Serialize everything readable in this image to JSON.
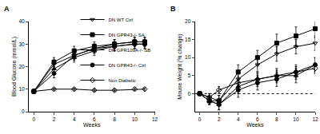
{
  "chart_data": [
    {
      "type": "line",
      "panel": "A",
      "x_label": "Weeks",
      "y_label": "Blood Glucose (mmol/L)",
      "xlim": [
        -0.5,
        12
      ],
      "xticks": [
        0,
        2,
        4,
        6,
        8,
        10,
        12
      ],
      "ylim": [
        0,
        40
      ],
      "yticks": [
        0,
        10,
        20,
        30,
        40
      ],
      "legend": "lower right",
      "series": [
        {
          "name": "DN WT Ctrl",
          "color": "#000000",
          "marker": "triangle-down-open",
          "x": [
            0,
            2,
            4,
            6,
            8,
            10,
            11
          ],
          "values": [
            9,
            21,
            25,
            28,
            30,
            31,
            31
          ],
          "errors": [
            1,
            2,
            2,
            2,
            2,
            2,
            2
          ]
        },
        {
          "name": "DN GPR43-/- SA",
          "color": "#000000",
          "marker": "square",
          "x": [
            0,
            2,
            4,
            6,
            8,
            10,
            11
          ],
          "values": [
            9,
            22,
            27,
            29,
            30,
            31,
            31
          ],
          "errors": [
            1,
            2,
            2,
            2,
            2,
            2,
            2
          ]
        },
        {
          "name": "DN GPR109A-/- SB",
          "color": "#000000",
          "marker": "triangle-up",
          "x": [
            0,
            2,
            4,
            6,
            8,
            10,
            11
          ],
          "values": [
            9,
            19,
            24,
            27,
            29,
            30,
            30
          ],
          "errors": [
            1,
            2,
            2,
            2,
            2,
            2,
            2
          ]
        },
        {
          "name": "DN GPR43-/- Ctrl",
          "color": "#000000",
          "marker": "circle",
          "x": [
            0,
            2,
            4,
            6,
            8,
            10,
            11
          ],
          "values": [
            9,
            17,
            25,
            28,
            29,
            30,
            30
          ],
          "errors": [
            1,
            2,
            2,
            2,
            2,
            2,
            2
          ]
        },
        {
          "name": "Non Diabetic",
          "color": "#000000",
          "marker": "diamond-open",
          "x": [
            0,
            2,
            4,
            6,
            8,
            10,
            11
          ],
          "values": [
            9,
            10,
            10,
            9.5,
            9.5,
            10,
            10
          ],
          "errors": [
            0.5,
            0.5,
            0.5,
            0.5,
            0.5,
            0.5,
            0.5
          ]
        }
      ]
    },
    {
      "type": "line",
      "panel": "B",
      "x_label": "Weeks",
      "y_label": "Mouse Weight (% change)",
      "xlim": [
        -0.5,
        12
      ],
      "xticks": [
        0,
        2,
        4,
        6,
        8,
        10,
        12
      ],
      "ylim": [
        -5,
        20
      ],
      "yticks": [
        0,
        5,
        10,
        15,
        20
      ],
      "hline": 0,
      "series": [
        {
          "name": "DN WT Ctrl",
          "color": "#000000",
          "marker": "triangle-down-open",
          "x": [
            0,
            1,
            2,
            4,
            6,
            8,
            10,
            12
          ],
          "values": [
            0,
            -1,
            -2,
            4,
            8,
            11,
            13,
            14
          ],
          "errors": [
            0.5,
            1,
            1.5,
            2,
            2,
            2,
            2,
            2
          ]
        },
        {
          "name": "DN GPR43-/- SA",
          "color": "#000000",
          "marker": "square",
          "x": [
            0,
            1,
            2,
            4,
            6,
            8,
            10,
            12
          ],
          "values": [
            0,
            -2,
            -2,
            6,
            10,
            14,
            16,
            18
          ],
          "errors": [
            0.5,
            1,
            1.5,
            2,
            2,
            2.5,
            2.5,
            2.5
          ]
        },
        {
          "name": "DN GPR109A-/- SB",
          "color": "#000000",
          "marker": "triangle-up",
          "x": [
            0,
            1,
            2,
            4,
            6,
            8,
            10,
            12
          ],
          "values": [
            0,
            -2,
            -3,
            2,
            4,
            5,
            5,
            8
          ],
          "errors": [
            0.5,
            1,
            1.5,
            2,
            2,
            2,
            2,
            2
          ]
        },
        {
          "name": "DN GPR43-/- Ctrl",
          "color": "#000000",
          "marker": "circle",
          "x": [
            0,
            1,
            2,
            4,
            6,
            8,
            10,
            12
          ],
          "values": [
            0,
            -2,
            -3,
            1,
            3,
            4,
            6,
            8
          ],
          "errors": [
            0.5,
            1,
            1.5,
            2,
            2,
            2,
            2,
            2
          ]
        },
        {
          "name": "Non Diabetic",
          "color": "#000000",
          "marker": "diamond-open",
          "x": [
            0,
            1,
            2,
            4,
            6,
            8,
            10,
            12
          ],
          "values": [
            0,
            -1,
            1,
            3,
            4,
            5,
            6,
            7
          ],
          "errors": [
            0.5,
            1,
            1,
            1.5,
            1.5,
            1.5,
            1.5,
            1.5
          ]
        }
      ]
    }
  ]
}
